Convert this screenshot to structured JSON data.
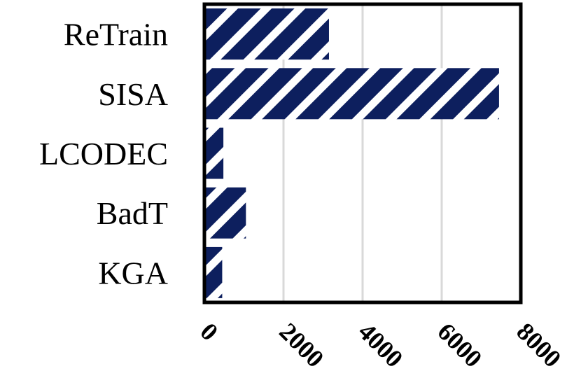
{
  "chart_data": {
    "type": "bar",
    "orientation": "horizontal",
    "title": "",
    "xlabel": "",
    "ylabel": "",
    "categories": [
      "ReTrain",
      "SISA",
      "LCODEC",
      "BadT",
      "KGA"
    ],
    "values": [
      3150,
      7450,
      480,
      1050,
      450
    ],
    "xlim": [
      0,
      8000
    ],
    "x_ticks": [
      "0",
      "2000",
      "4000",
      "6000",
      "8000"
    ],
    "grid": true,
    "legend": "none",
    "bar_fill": "diagonal-stripes",
    "bar_color": "#0d1f5e",
    "bar_stripe_color": "#ffffff",
    "grid_color": "#d9d9d9"
  }
}
